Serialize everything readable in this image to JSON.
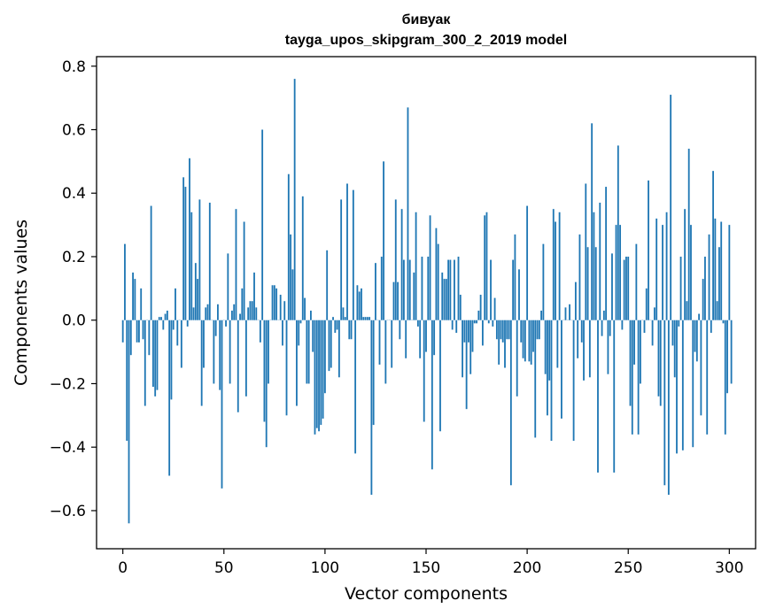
{
  "chart_data": {
    "type": "bar",
    "title": "бивуак",
    "subtitle": "tayga_upos_skipgram_300_2_2019 model",
    "xlabel": "Vector components",
    "ylabel": "Components values",
    "xlim": [
      -13,
      313
    ],
    "ylim": [
      -0.72,
      0.83
    ],
    "xticks": [
      0,
      50,
      100,
      150,
      200,
      250,
      300
    ],
    "yticks": [
      -0.6,
      -0.4,
      -0.2,
      0.0,
      0.2,
      0.4,
      0.6,
      0.8
    ],
    "ytick_labels": [
      "−0.6",
      "−0.4",
      "−0.2",
      "0.0",
      "0.2",
      "0.4",
      "0.6",
      "0.8"
    ],
    "bar_color": "#1f77b4",
    "grid": false,
    "values": [
      -0.07,
      0.24,
      -0.38,
      -0.64,
      -0.11,
      0.15,
      0.13,
      -0.07,
      -0.07,
      0.1,
      -0.06,
      -0.27,
      0.0,
      -0.11,
      0.36,
      -0.21,
      -0.24,
      -0.22,
      0.01,
      0.01,
      -0.03,
      0.02,
      0.03,
      -0.49,
      -0.25,
      -0.03,
      0.1,
      -0.08,
      0.0,
      -0.15,
      0.45,
      0.42,
      -0.02,
      0.51,
      0.34,
      0.04,
      0.18,
      0.13,
      0.38,
      -0.27,
      -0.15,
      0.04,
      0.05,
      0.37,
      0.0,
      -0.2,
      -0.05,
      0.05,
      -0.22,
      -0.53,
      0.0,
      -0.02,
      0.21,
      -0.2,
      0.03,
      0.05,
      0.35,
      -0.29,
      0.02,
      0.1,
      0.31,
      -0.24,
      0.04,
      0.06,
      0.06,
      0.15,
      0.04,
      0.0,
      -0.07,
      0.6,
      -0.32,
      -0.4,
      -0.2,
      0.0,
      0.11,
      0.11,
      0.1,
      0.0,
      0.08,
      -0.08,
      0.06,
      -0.3,
      0.46,
      0.27,
      0.16,
      0.76,
      -0.27,
      -0.08,
      -0.01,
      0.39,
      0.07,
      -0.2,
      -0.2,
      0.03,
      -0.1,
      -0.36,
      -0.34,
      -0.35,
      -0.33,
      -0.31,
      -0.23,
      0.22,
      -0.16,
      -0.15,
      0.01,
      -0.04,
      -0.03,
      -0.18,
      0.38,
      0.04,
      0.01,
      0.43,
      -0.06,
      -0.06,
      0.41,
      -0.42,
      0.11,
      0.09,
      0.1,
      0.01,
      0.01,
      0.01,
      0.01,
      -0.55,
      -0.33,
      0.18,
      0.0,
      -0.14,
      0.2,
      0.5,
      -0.2,
      0.0,
      0.0,
      -0.15,
      0.12,
      0.38,
      0.12,
      -0.06,
      0.35,
      0.19,
      -0.12,
      0.67,
      0.19,
      0.0,
      0.15,
      0.34,
      -0.02,
      -0.12,
      0.2,
      -0.32,
      -0.1,
      0.2,
      0.33,
      -0.47,
      -0.11,
      0.29,
      0.24,
      -0.35,
      0.15,
      0.13,
      0.13,
      0.19,
      0.19,
      -0.03,
      0.19,
      -0.04,
      0.2,
      0.08,
      -0.18,
      -0.07,
      -0.28,
      -0.07,
      -0.17,
      -0.1,
      -0.01,
      -0.01,
      0.03,
      0.08,
      -0.08,
      0.33,
      0.34,
      -0.01,
      0.19,
      -0.02,
      0.07,
      -0.06,
      -0.14,
      -0.06,
      -0.07,
      -0.15,
      -0.06,
      -0.06,
      -0.52,
      0.19,
      0.27,
      -0.24,
      0.16,
      -0.07,
      -0.12,
      -0.13,
      0.36,
      -0.13,
      -0.14,
      -0.1,
      -0.37,
      -0.06,
      -0.06,
      0.03,
      0.24,
      -0.17,
      -0.3,
      -0.19,
      -0.38,
      0.35,
      0.31,
      -0.15,
      0.34,
      -0.31,
      0.0,
      0.04,
      0.0,
      0.05,
      0.0,
      -0.38,
      0.12,
      -0.12,
      0.27,
      -0.07,
      -0.19,
      0.43,
      0.23,
      -0.18,
      0.62,
      0.34,
      0.23,
      -0.48,
      0.37,
      -0.05,
      0.03,
      0.42,
      -0.17,
      -0.05,
      0.21,
      -0.48,
      0.3,
      0.55,
      0.3,
      -0.03,
      0.19,
      0.2,
      0.2,
      -0.27,
      -0.36,
      -0.14,
      0.24,
      -0.36,
      -0.2,
      0.0,
      -0.04,
      0.1,
      0.44,
      0.0,
      -0.08,
      0.04,
      0.32,
      -0.24,
      -0.27,
      0.3,
      -0.52,
      0.34,
      -0.55,
      0.71,
      -0.08,
      -0.18,
      -0.42,
      -0.02,
      0.2,
      -0.41,
      0.35,
      0.06,
      0.54,
      0.3,
      -0.4,
      -0.1,
      -0.13,
      0.02,
      -0.3,
      0.13,
      0.2,
      -0.36,
      0.27,
      -0.04,
      0.47,
      0.32,
      0.06,
      0.23,
      0.31,
      -0.01,
      -0.36,
      -0.23,
      0.3,
      -0.2
    ]
  }
}
